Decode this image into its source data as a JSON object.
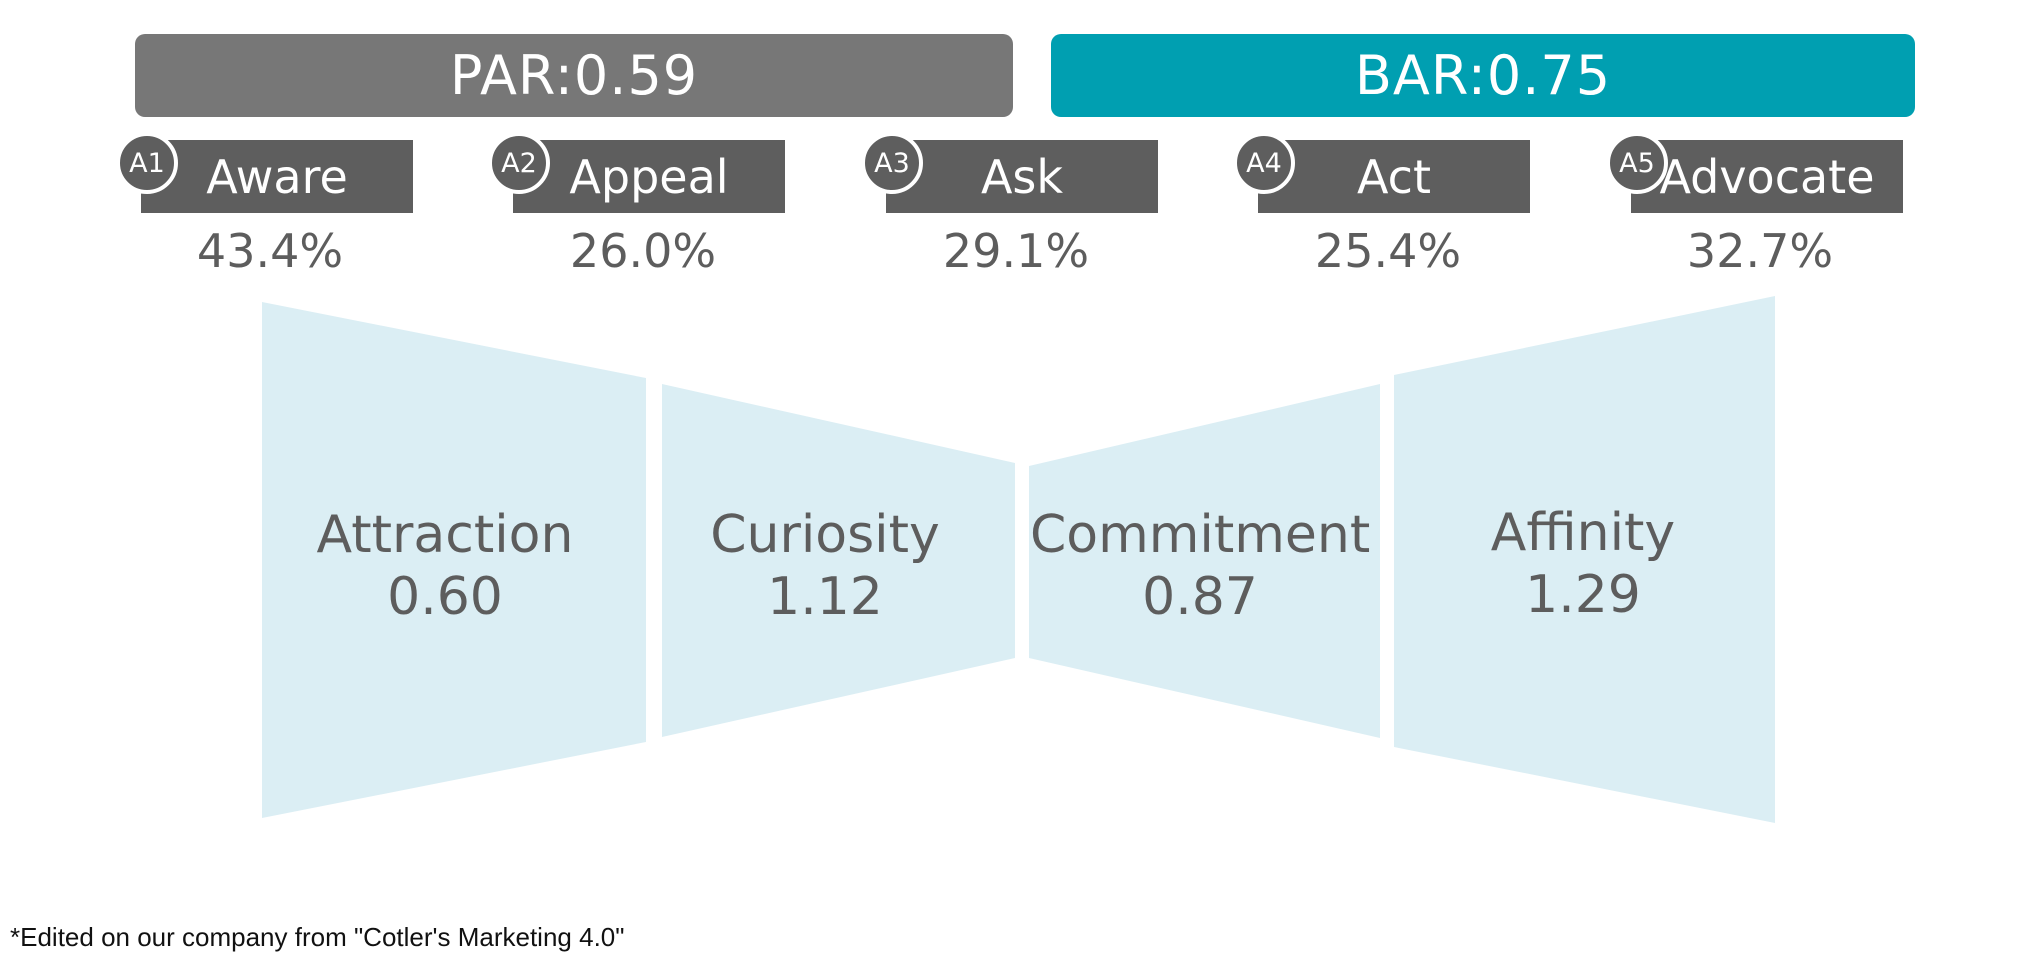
{
  "ratios": {
    "par": "PAR:0.59",
    "bar": "BAR:0.75",
    "par_color": "#777777",
    "bar_color": "#009fb1"
  },
  "stages": [
    {
      "badge": "A1",
      "label": "Aware",
      "pct": "43.4%"
    },
    {
      "badge": "A2",
      "label": "Appeal",
      "pct": "26.0%"
    },
    {
      "badge": "A3",
      "label": "Ask",
      "pct": "29.1%"
    },
    {
      "badge": "A4",
      "label": "Act",
      "pct": "25.4%"
    },
    {
      "badge": "A5",
      "label": "Advocate",
      "pct": "32.7%"
    }
  ],
  "conversions": [
    {
      "name": "Attraction",
      "value": "0.60"
    },
    {
      "name": "Curiosity",
      "value": "1.12"
    },
    {
      "name": "Commitment",
      "value": "0.87"
    },
    {
      "name": "Affinity",
      "value": "1.29"
    }
  ],
  "colors": {
    "funnel_fill": "#dbeef4",
    "stage_fill": "#5e5e5e",
    "text": "#5d5d5d"
  },
  "footnote": "*Edited on our company from \"Cotler's Marketing 4.0\""
}
